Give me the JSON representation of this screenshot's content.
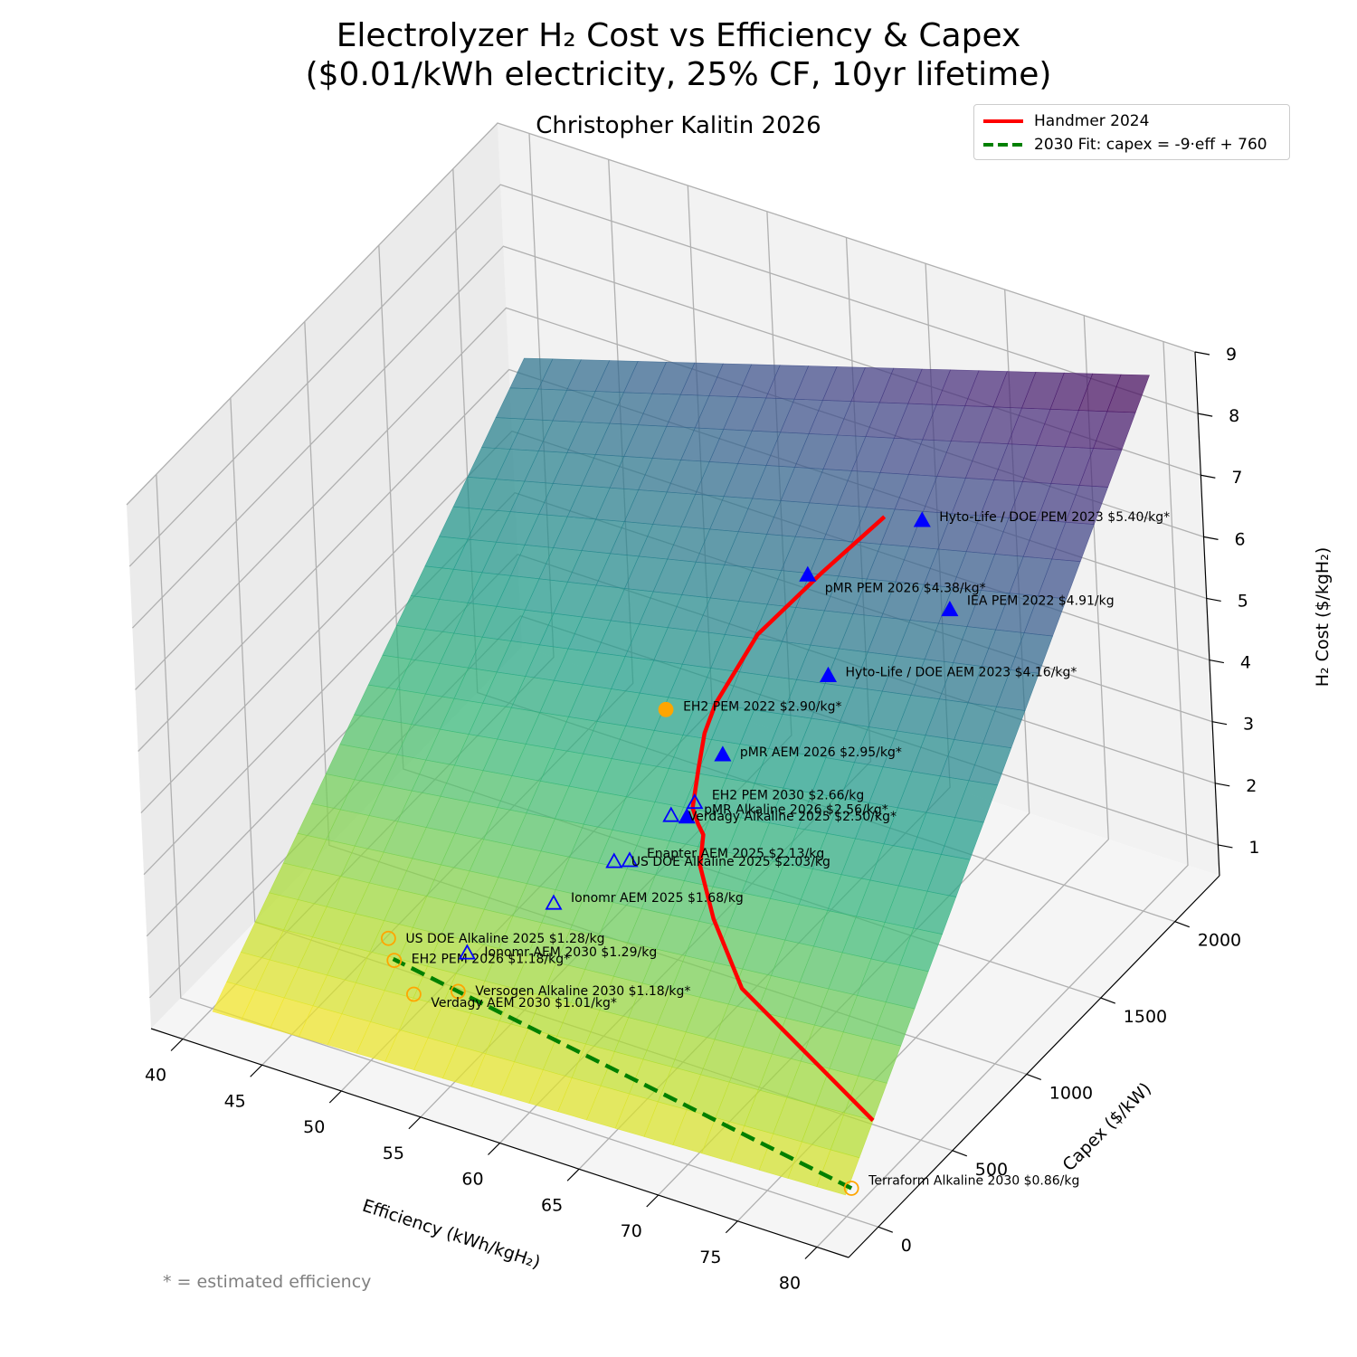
{
  "chart_data": {
    "type": "surface3d",
    "title_line1": "Electrolyzer H₂ Cost vs Efficiency & Capex",
    "title_line2": "($0.01/kWh electricity, 25% CF, 10yr lifetime)",
    "subtitle": "Christopher Kalitin 2026",
    "xlabel": "Efficiency (kWh/kgH₂)",
    "ylabel": "Capex ($/kW)",
    "zlabel": "H₂ Cost ($/kgH₂)",
    "xlim": [
      38,
      82
    ],
    "ylim": [
      -200,
      2300
    ],
    "zlim": [
      0.5,
      9
    ],
    "x_ticks": [
      "40",
      "45",
      "50",
      "55",
      "60",
      "65",
      "70",
      "75",
      "80"
    ],
    "y_ticks": [
      "0",
      "500",
      "1000",
      "1500",
      "2000"
    ],
    "z_ticks": [
      "1",
      "2",
      "3",
      "4",
      "5",
      "6",
      "7",
      "8",
      "9"
    ],
    "surface": {
      "x_range": [
        40,
        80
      ],
      "y_range": [
        0,
        2200
      ],
      "colormap": "viridis_r",
      "corner_costs": {
        "x40_y0": 0.45,
        "x80_y0": 0.85,
        "x40_y2200": 5.6,
        "x80_y2200": 8.7
      }
    },
    "series": [
      {
        "name": "Handmer 2024",
        "type": "line",
        "color": "#ff0000",
        "x": [
          78,
          73,
          68,
          64.6,
          62.7,
          62,
          61.4,
          60.7,
          59.9,
          59.3,
          59.2,
          60.1,
          61.1,
          62.4,
          64.6
        ],
        "y": [
          400,
          500,
          600,
          780,
          900,
          1000,
          1030,
          1070,
          1200,
          1310,
          1400,
          1600,
          1700,
          1800,
          2000
        ],
        "z": [
          0.9,
          1.3,
          1.7,
          2.1,
          2.5,
          2.7,
          2.75,
          2.85,
          3.1,
          3.35,
          3.6,
          4.3,
          4.6,
          5.0,
          5.6
        ]
      },
      {
        "name": "2030 Fit: capex = -9·eff + 760",
        "type": "line",
        "color": "#008000",
        "dash": true,
        "x": [
          80,
          48.5
        ],
        "y": [
          40,
          323.5
        ],
        "z": [
          0.86,
          1.22
        ]
      }
    ],
    "points": [
      {
        "label": "Hyto-Life / DOE PEM 2023 $5.40/kg*",
        "x": 66,
        "y": 2100,
        "z": 5.4,
        "style": "filled-triangle",
        "color": "#0000ff",
        "dy": -4
      },
      {
        "label": "IEA PEM 2022 $4.91/kg",
        "x": 70,
        "y": 1850,
        "z": 4.91,
        "style": "filled-triangle",
        "color": "#0000ff",
        "dy": -10
      },
      {
        "label": "pMR PEM 2026 $4.38/kg*",
        "x": 60,
        "y": 1950,
        "z": 4.38,
        "style": "filled-triangle",
        "color": "#0000ff",
        "dy": 14
      },
      {
        "label": "Hyto-Life / DOE AEM 2023 $4.16/kg*",
        "x": 65,
        "y": 1550,
        "z": 4.16,
        "style": "filled-triangle",
        "color": "#0000ff",
        "dy": -4
      },
      {
        "label": "EH2 PEM 2022 $2.90/kg*",
        "x": 55,
        "y": 1500,
        "z": 2.9,
        "style": "filled-circle",
        "color": "#ffa500",
        "dy": -3
      },
      {
        "label": "pMR AEM 2026 $2.95/kg*",
        "x": 60,
        "y": 1350,
        "z": 2.95,
        "style": "filled-triangle",
        "color": "#0000ff",
        "dy": -3
      },
      {
        "label": "EH2 PEM 2030 $2.66/kg",
        "x": 60,
        "y": 1155,
        "z": 2.66,
        "style": "open-triangle",
        "color": "#0000ff",
        "dy": -8
      },
      {
        "label": "pMR Alkaline 2026 $2.56/kg*",
        "x": 60,
        "y": 1100,
        "z": 2.56,
        "style": "filled-triangle",
        "color": "#0000ff",
        "dy": -8
      },
      {
        "label": "Verdagy Alkaline 2025 $2.50/kg*",
        "x": 59,
        "y": 1100,
        "z": 2.5,
        "style": "open-triangle",
        "color": "#0000ff",
        "dy": 1
      },
      {
        "label": "Enapter AEM 2025 $2.13/kg",
        "x": 58,
        "y": 920,
        "z": 2.13,
        "style": "open-triangle",
        "color": "#0000ff",
        "dy": -8
      },
      {
        "label": "US DOE Alkaline 2025 $2.03/kg",
        "x": 57,
        "y": 920,
        "z": 2.03,
        "style": "open-triangle",
        "color": "#0000ff",
        "dy": 0
      },
      {
        "label": "Ionomr AEM 2025 $1.68/kg",
        "x": 55,
        "y": 720,
        "z": 1.68,
        "style": "open-triangle",
        "color": "#0000ff",
        "dy": -6
      },
      {
        "label": "US DOE Alkaline 2025 $1.28/kg",
        "x": 47.5,
        "y": 400,
        "z": 1.28,
        "style": "open-circle",
        "color": "#ffa500",
        "dy": 1
      },
      {
        "label": "EH2 PEM 2026 $1.18/kg*",
        "x": 48.5,
        "y": 330,
        "z": 1.18,
        "style": "open-circle",
        "color": "#ffa500",
        "dy": -1
      },
      {
        "label": "Ionomr AEM 2030 $1.29/kg",
        "x": 52,
        "y": 450,
        "z": 1.29,
        "style": "open-triangle",
        "color": "#0000ff",
        "dy": -1
      },
      {
        "label": "Versogen Alkaline 2030 $1.18/kg*",
        "x": 53,
        "y": 280,
        "z": 1.18,
        "style": "open-circle",
        "color": "#ffa500",
        "dy": 0
      },
      {
        "label": "Verdagy AEM 2030 $1.01/kg*",
        "x": 50.5,
        "y": 245,
        "z": 1.01,
        "style": "open-circle",
        "color": "#ffa500",
        "dy": 10
      },
      {
        "label": "Terraform Alkaline 2030 $0.86/kg",
        "x": 80,
        "y": 40,
        "z": 0.86,
        "style": "open-circle",
        "color": "#ffa500",
        "dy": -8
      }
    ]
  },
  "legend": {
    "items": [
      {
        "label": "Handmer 2024",
        "color": "#ff0000",
        "dash": false
      },
      {
        "label": "2030 Fit: capex = -9·eff + 760",
        "color": "#008000",
        "dash": true
      }
    ]
  },
  "footnote": "* = estimated efficiency"
}
